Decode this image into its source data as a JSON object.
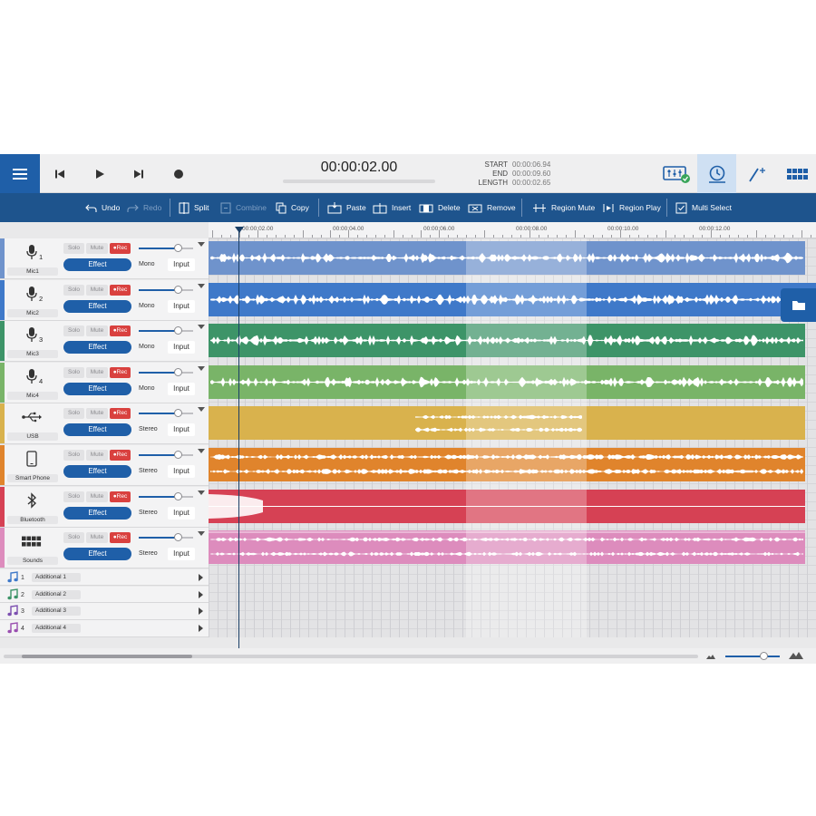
{
  "transport": {
    "time": "00:00:02.00",
    "start_label": "START",
    "start_value": "00:00:06.94",
    "end_label": "END",
    "end_value": "00:00:09.60",
    "length_label": "LENGTH",
    "length_value": "00:00:02.65"
  },
  "toolbar": {
    "undo": "Undo",
    "redo": "Redo",
    "split": "Split",
    "combine": "Combine",
    "copy": "Copy",
    "paste": "Paste",
    "insert": "Insert",
    "delete": "Delete",
    "remove": "Remove",
    "region_mute": "Region Mute",
    "region_play": "Region Play",
    "multi_select": "Multi Select"
  },
  "ruler": [
    "00:00:02.00",
    "00:00:04.00",
    "00:00:06.00",
    "00:00:08.00",
    "00:00:10.00",
    "00:00:12.00"
  ],
  "labels": {
    "solo": "Solo",
    "mute": "Mute",
    "rec": "●Rec",
    "effect": "Effect",
    "input": "Input"
  },
  "tracks": [
    {
      "num": "1",
      "name": "Mic1",
      "mode": "Mono",
      "icon": "microphone-icon",
      "color": "#6f93cc"
    },
    {
      "num": "2",
      "name": "Mic2",
      "mode": "Mono",
      "icon": "microphone-icon",
      "color": "#3f79c9"
    },
    {
      "num": "3",
      "name": "Mic3",
      "mode": "Mono",
      "icon": "microphone-icon",
      "color": "#3d9468"
    },
    {
      "num": "4",
      "name": "Mic4",
      "mode": "Mono",
      "icon": "microphone-icon",
      "color": "#79b468"
    },
    {
      "num": "",
      "name": "USB",
      "mode": "Stereo",
      "icon": "usb-icon",
      "color": "#d9b24d"
    },
    {
      "num": "",
      "name": "Smart Phone",
      "mode": "Stereo",
      "icon": "smartphone-icon",
      "color": "#e0842c"
    },
    {
      "num": "",
      "name": "Bluetooth",
      "mode": "Stereo",
      "icon": "bluetooth-icon",
      "color": "#d64154"
    },
    {
      "num": "",
      "name": "Sounds",
      "mode": "Stereo",
      "icon": "sounds-grid-icon",
      "color": "#dd8cbd"
    }
  ],
  "additional": [
    {
      "num": "1",
      "name": "Additional 1",
      "color": "#3f79c9"
    },
    {
      "num": "2",
      "name": "Additional 2",
      "color": "#3d9468"
    },
    {
      "num": "3",
      "name": "Additional 3",
      "color": "#7c4fb0"
    },
    {
      "num": "4",
      "name": "Additional 4",
      "color": "#9a4fb0"
    }
  ]
}
